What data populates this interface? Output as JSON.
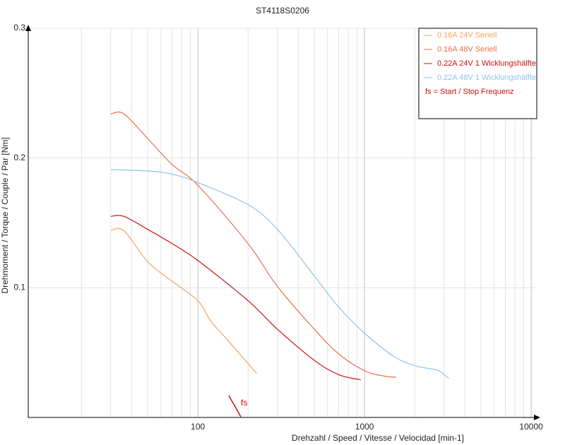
{
  "chart_data": {
    "type": "line",
    "title": "ST4118S0206",
    "x_label": "Drehzahl / Speed / Vitesse / Velocidad [min-1]",
    "y_label": "Drehmoment / Torque / Couple / Par [Nm]",
    "x_scale": "log",
    "xlim": [
      9.6,
      10800
    ],
    "ylim": [
      0,
      0.3
    ],
    "xticks": [
      100,
      1000,
      10000
    ],
    "x_minor_grid": [
      20,
      30,
      40,
      50,
      60,
      70,
      80,
      90,
      200,
      300,
      400,
      500,
      600,
      700,
      800,
      900,
      2000,
      3000,
      4000,
      5000,
      6000,
      7000,
      8000,
      9000
    ],
    "yticks": [
      0.1,
      0.2,
      0.3
    ],
    "grid": true,
    "legend_position": "upper right",
    "series": [
      {
        "name": "0.16A  24V  Seriell",
        "color": "#f4a460",
        "x": [
          30,
          36,
          50,
          70,
          100,
          120,
          150,
          225
        ],
        "values": [
          0.144,
          0.144,
          0.12,
          0.105,
          0.09,
          0.074,
          0.06,
          0.034
        ]
      },
      {
        "name": "0.16A  48V  Seriell",
        "color": "#e8704a",
        "x": [
          30,
          36,
          50,
          70,
          100,
          200,
          300,
          500,
          700,
          1000,
          1300,
          1550
        ],
        "values": [
          0.234,
          0.234,
          0.215,
          0.195,
          0.179,
          0.134,
          0.101,
          0.068,
          0.049,
          0.036,
          0.032,
          0.031
        ]
      },
      {
        "name": "0.22A  24V  1 Wicklungshälfte",
        "color": "#cc1111",
        "x": [
          30,
          36,
          50,
          70,
          100,
          200,
          300,
          500,
          700,
          950
        ],
        "values": [
          0.155,
          0.155,
          0.145,
          0.134,
          0.121,
          0.09,
          0.068,
          0.044,
          0.033,
          0.029
        ]
      },
      {
        "name": "0.22A  48V  1 Wicklungshälfte",
        "color": "#8ec4e8",
        "x": [
          30,
          50,
          70,
          100,
          200,
          300,
          500,
          700,
          1000,
          1500,
          2000,
          2500,
          2800,
          3200
        ],
        "values": [
          0.191,
          0.19,
          0.1875,
          0.181,
          0.164,
          0.145,
          0.109,
          0.085,
          0.065,
          0.047,
          0.04,
          0.0375,
          0.036,
          0.03
        ]
      }
    ],
    "annotation": "fs",
    "legend_note": "fs = Start / Stop Frequenz"
  }
}
